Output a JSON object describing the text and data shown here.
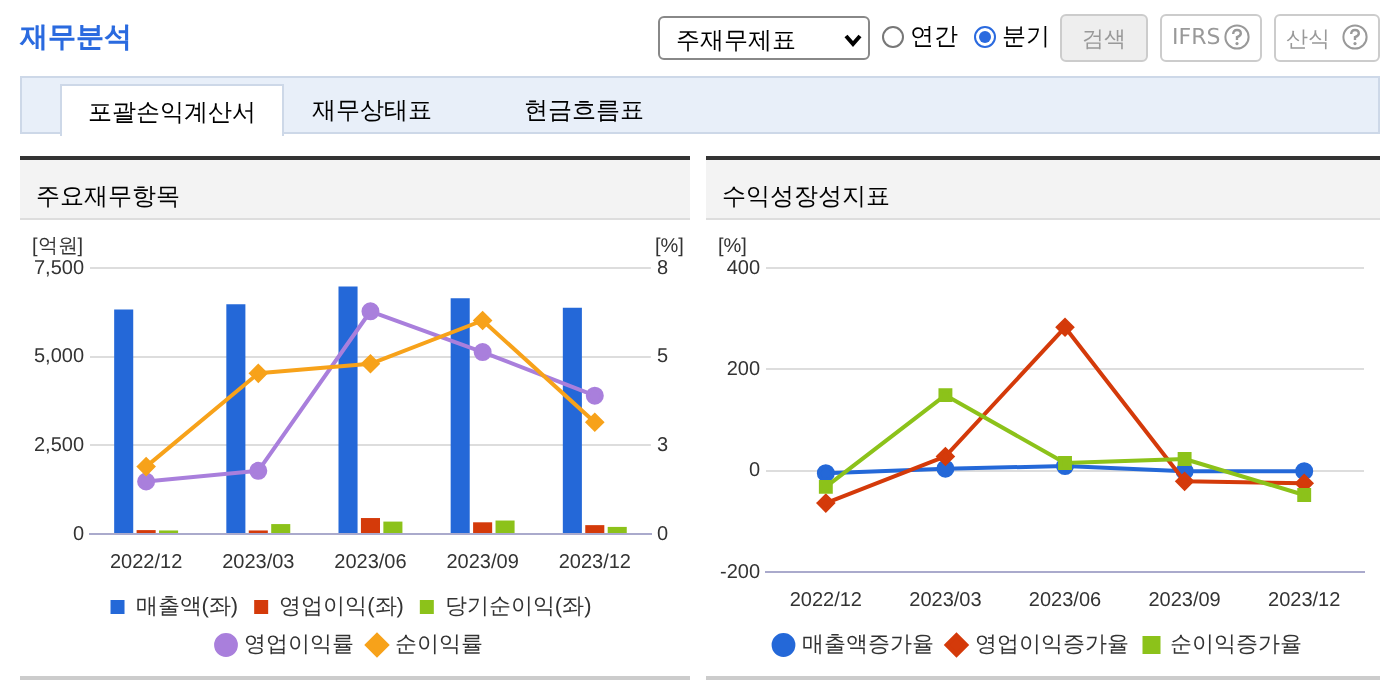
{
  "chart_data": [
    {
      "type": "other",
      "title": "재무분석",
      "annotations": [
        "주재무제표",
        "연간",
        "분기",
        "검색",
        "IFRS",
        "산식",
        "포괄손익계산서",
        "재무상태표",
        "현금흐름표"
      ]
    },
    {
      "type": "bar",
      "title": "주요재무항목",
      "ylabel": "[억원]",
      "y2label": "[%]",
      "categories": [
        "2022/12",
        "2023/03",
        "2023/06",
        "2023/09",
        "2023/12"
      ],
      "series": [
        {
          "name": "매출액(좌)",
          "color": "#2468d8",
          "values": [
            6330,
            6480,
            6980,
            6650,
            6380
          ]
        },
        {
          "name": "영업이익(좌)",
          "color": "#d43a0a",
          "values": [
            110,
            100,
            450,
            330,
            250
          ]
        },
        {
          "name": "당기순이익(좌)",
          "color": "#8cc21a",
          "values": [
            100,
            280,
            350,
            380,
            200
          ]
        },
        {
          "name": "영업이익률",
          "type": "line",
          "axis": "y2",
          "marker": "circle",
          "color": "#a97fdc",
          "values": [
            1.48,
            1.78,
            6.28,
            5.13,
            3.9
          ]
        },
        {
          "name": "순이익률",
          "type": "line",
          "axis": "y2",
          "marker": "diamond",
          "color": "#f7a21a",
          "values": [
            1.9,
            4.53,
            4.8,
            6.02,
            3.15
          ]
        }
      ],
      "ylim": [
        0,
        7500
      ],
      "yticks": [
        0,
        {
          "value": 2500,
          "label": "2,500"
        },
        {
          "value": 5000,
          "label": "5,000"
        },
        {
          "value": 7500,
          "label": "7,500"
        }
      ],
      "y2lim": [
        0,
        7.5
      ],
      "y2ticks": [
        0,
        {
          "value": 2.5,
          "label": "3"
        },
        5,
        {
          "value": 7.5,
          "label": "8"
        }
      ],
      "grid": "y",
      "legend": "bottom"
    },
    {
      "type": "line",
      "title": "수익성장성지표",
      "ylabel": "[%]",
      "categories": [
        "2022/12",
        "2023/03",
        "2023/06",
        "2023/09",
        "2023/12"
      ],
      "series": [
        {
          "name": "매출액증가율",
          "color": "#2468d8",
          "marker": "circle",
          "values": [
            -5,
            4,
            9,
            -1,
            -1
          ]
        },
        {
          "name": "영업이익증가율",
          "color": "#d43a0a",
          "marker": "diamond",
          "values": [
            -64,
            28,
            283,
            -21,
            -25
          ]
        },
        {
          "name": "순이익증가율",
          "color": "#8cc21a",
          "marker": "square",
          "values": [
            -32,
            149,
            15,
            23,
            -48
          ]
        }
      ],
      "ylim": [
        -200,
        400
      ],
      "yticks": [
        -200,
        0,
        200,
        400
      ],
      "grid": "y",
      "legend": "bottom"
    }
  ]
}
